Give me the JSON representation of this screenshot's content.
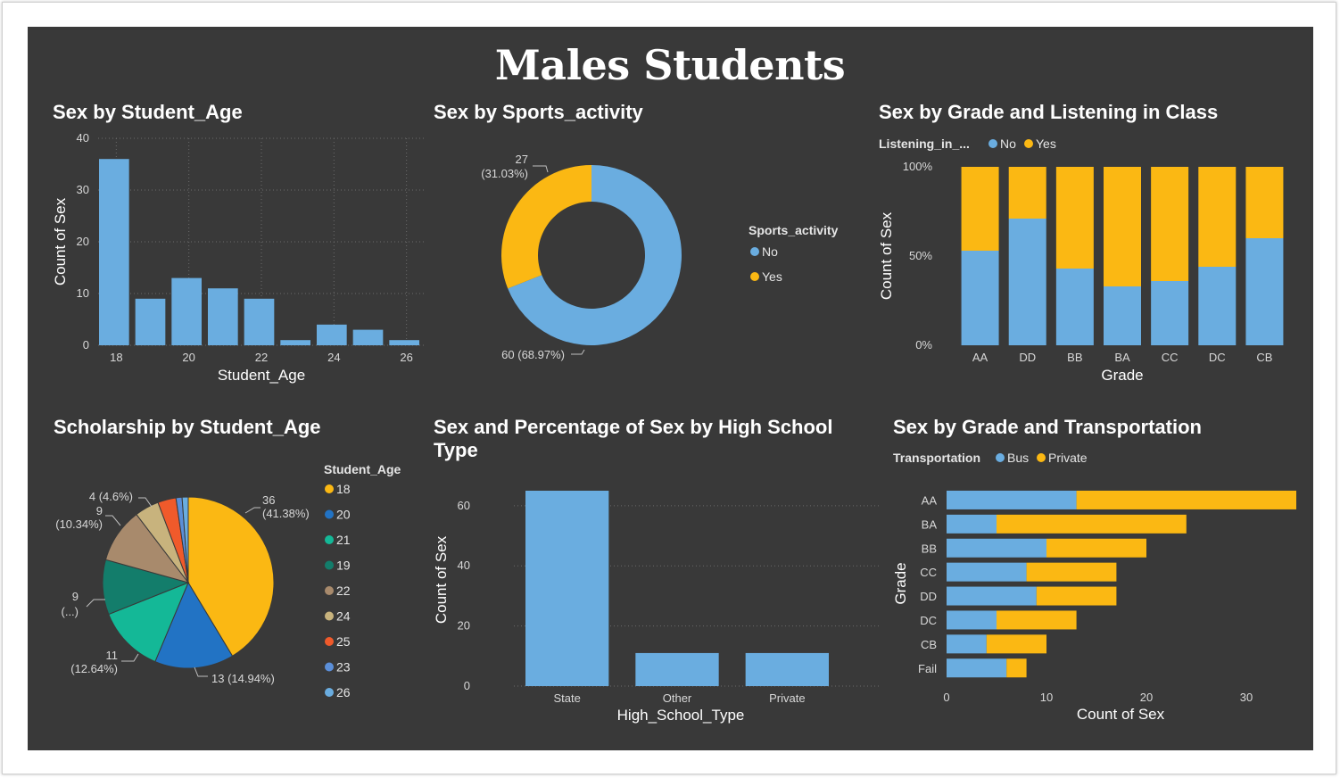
{
  "dashboard": {
    "title": "Males Students"
  },
  "colors": {
    "blue": "#6aade0",
    "yellow": "#fbb813",
    "background": "#393939",
    "text": "#ffffff"
  },
  "chart_data": [
    {
      "id": "age",
      "type": "bar",
      "title": "Sex by Student_Age",
      "xlabel": "Student_Age",
      "ylabel": "Count of Sex",
      "x": [
        18,
        19,
        20,
        21,
        22,
        23,
        24,
        25,
        26
      ],
      "values": [
        36,
        9,
        13,
        11,
        9,
        1,
        4,
        3,
        1
      ],
      "x_ticks": [
        "18",
        "20",
        "22",
        "24",
        "26"
      ],
      "y_ticks": [
        "0",
        "10",
        "20",
        "30",
        "40"
      ],
      "ylim": [
        0,
        40
      ],
      "grid": true
    },
    {
      "id": "sports",
      "type": "pie",
      "donut": true,
      "title": "Sex by Sports_activity",
      "legend_title": "Sports_activity",
      "categories": [
        "No",
        "Yes"
      ],
      "values": [
        60,
        27
      ],
      "labels": [
        "60 (68.97%)",
        "27",
        "(31.03%)"
      ],
      "colors": [
        "#6aade0",
        "#fbb813"
      ],
      "legend_position": "right"
    },
    {
      "id": "listening",
      "type": "bar",
      "stacked": "percent",
      "title": "Sex by Grade and Listening in Class",
      "legend_title": "Listening_in_...",
      "xlabel": "Grade",
      "ylabel": "Count of Sex",
      "categories": [
        "AA",
        "DD",
        "BB",
        "BA",
        "CC",
        "DC",
        "CB"
      ],
      "series": [
        {
          "name": "No",
          "color": "#6aade0",
          "values": [
            53,
            71,
            43,
            33,
            36,
            44,
            60
          ]
        },
        {
          "name": "Yes",
          "color": "#fbb813",
          "values": [
            47,
            29,
            57,
            67,
            64,
            56,
            40
          ]
        }
      ],
      "y_ticks": [
        "0%",
        "50%",
        "100%"
      ],
      "ylim": [
        0,
        100
      ],
      "legend_position": "top-left"
    },
    {
      "id": "scholarship",
      "type": "pie",
      "title": "Scholarship by Student_Age",
      "legend_title": "Student_Age",
      "categories": [
        "18",
        "20",
        "21",
        "19",
        "22",
        "24",
        "25",
        "23",
        "26"
      ],
      "values": [
        36,
        13,
        11,
        9,
        9,
        4,
        3,
        1,
        1
      ],
      "colors": [
        "#fbb813",
        "#2273c4",
        "#14b897",
        "#137d6b",
        "#a88a6c",
        "#c8b37d",
        "#f05a2b",
        "#5b8fd9",
        "#6aade0"
      ],
      "labels": [
        "36",
        "(41.38%)",
        "13 (14.94%)",
        "11",
        "(12.64%)",
        "9",
        "(...)",
        "9",
        "(10.34%)",
        "4 (4.6%)"
      ],
      "legend_position": "right"
    },
    {
      "id": "highschool",
      "type": "bar",
      "title": "Sex and Percentage of Sex by High School Type",
      "xlabel": "High_School_Type",
      "ylabel": "Count of Sex",
      "categories": [
        "State",
        "Other",
        "Private"
      ],
      "values": [
        65,
        11,
        11
      ],
      "y_ticks": [
        "0",
        "20",
        "40",
        "60"
      ],
      "ylim": [
        0,
        65
      ],
      "grid": true
    },
    {
      "id": "transport",
      "type": "bar",
      "orientation": "horizontal",
      "stacked": true,
      "title": "Sex by Grade and Transportation",
      "legend_title": "Transportation",
      "xlabel": "Count of Sex",
      "ylabel": "Grade",
      "categories": [
        "AA",
        "BA",
        "BB",
        "CC",
        "DD",
        "DC",
        "CB",
        "Fail"
      ],
      "series": [
        {
          "name": "Bus",
          "color": "#6aade0",
          "values": [
            13,
            5,
            10,
            8,
            9,
            5,
            4,
            6
          ]
        },
        {
          "name": "Private",
          "color": "#fbb813",
          "values": [
            22,
            19,
            10,
            9,
            8,
            8,
            6,
            2
          ]
        }
      ],
      "x_ticks": [
        "0",
        "10",
        "20",
        "30"
      ],
      "xlim": [
        0,
        35
      ],
      "legend_position": "top-left"
    }
  ]
}
